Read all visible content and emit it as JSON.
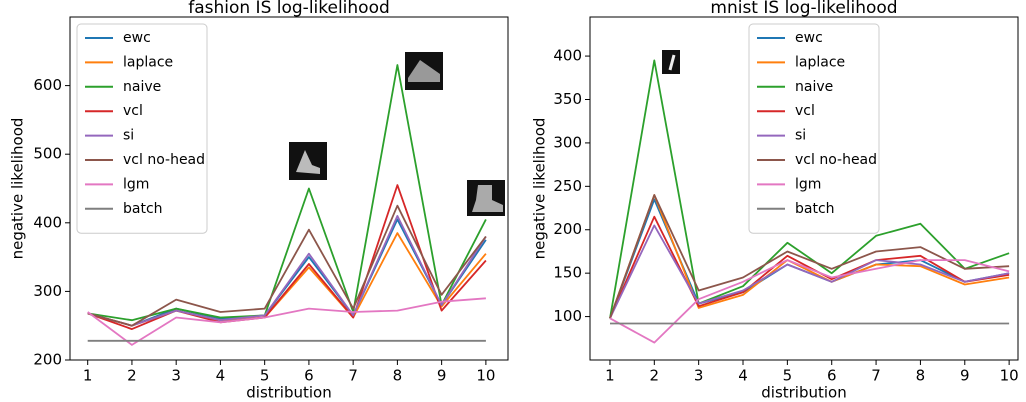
{
  "chart_data": [
    {
      "type": "line",
      "title": "fashion IS log-likelihood",
      "x_label": "distribution",
      "y_label": "negative likelihood",
      "x": [
        1,
        2,
        3,
        4,
        5,
        6,
        7,
        8,
        9,
        10
      ],
      "xlim": [
        0.6,
        10.5
      ],
      "xticks": [
        1,
        2,
        3,
        4,
        5,
        6,
        7,
        8,
        9,
        10
      ],
      "ylim": [
        200,
        700
      ],
      "yticks": [
        200,
        300,
        400,
        500,
        600
      ],
      "legend": "upper left",
      "series": [
        {
          "name": "ewc",
          "color": "#1f77b4",
          "values": [
            268,
            250,
            275,
            260,
            265,
            350,
            265,
            405,
            280,
            375
          ]
        },
        {
          "name": "laplace",
          "color": "#ff7f0e",
          "values": [
            268,
            250,
            272,
            258,
            262,
            335,
            262,
            385,
            278,
            355
          ]
        },
        {
          "name": "naive",
          "color": "#2ca02c",
          "values": [
            268,
            258,
            275,
            262,
            265,
            450,
            270,
            630,
            280,
            405
          ]
        },
        {
          "name": "vcl",
          "color": "#d62728",
          "values": [
            268,
            245,
            272,
            255,
            262,
            340,
            262,
            455,
            272,
            345
          ]
        },
        {
          "name": "si",
          "color": "#9467bd",
          "values": [
            268,
            250,
            272,
            258,
            265,
            355,
            265,
            410,
            280,
            380
          ]
        },
        {
          "name": "vcl no-head",
          "color": "#8c564b",
          "values": [
            268,
            250,
            288,
            270,
            275,
            390,
            275,
            425,
            295,
            380
          ]
        },
        {
          "name": "lgm",
          "color": "#e377c2",
          "values": [
            270,
            222,
            262,
            255,
            262,
            275,
            270,
            272,
            285,
            290
          ]
        },
        {
          "name": "batch",
          "color": "#7f7f7f",
          "values": [
            228,
            228,
            228,
            228,
            228,
            228,
            228,
            228,
            228,
            228
          ]
        }
      ]
    },
    {
      "type": "line",
      "title": "mnist IS log-likelihood",
      "x_label": "distribution",
      "y_label": "negative likelihood",
      "x": [
        1,
        2,
        3,
        4,
        5,
        6,
        7,
        8,
        9,
        10
      ],
      "xlim": [
        0.55,
        10.2
      ],
      "xticks": [
        1,
        2,
        3,
        4,
        5,
        6,
        7,
        8,
        9,
        10
      ],
      "ylim": [
        50,
        445
      ],
      "yticks": [
        100,
        150,
        200,
        250,
        300,
        350,
        400
      ],
      "legend": "upper center",
      "series": [
        {
          "name": "ewc",
          "color": "#1f77b4",
          "values": [
            98,
            235,
            115,
            128,
            160,
            140,
            160,
            165,
            140,
            150
          ]
        },
        {
          "name": "laplace",
          "color": "#ff7f0e",
          "values": [
            98,
            240,
            110,
            125,
            165,
            140,
            160,
            158,
            137,
            145
          ]
        },
        {
          "name": "naive",
          "color": "#2ca02c",
          "values": [
            98,
            395,
            115,
            135,
            185,
            150,
            193,
            207,
            155,
            173
          ]
        },
        {
          "name": "vcl",
          "color": "#d62728",
          "values": [
            98,
            215,
            112,
            128,
            170,
            143,
            165,
            170,
            140,
            148
          ]
        },
        {
          "name": "si",
          "color": "#9467bd",
          "values": [
            98,
            205,
            115,
            130,
            160,
            140,
            165,
            160,
            140,
            150
          ]
        },
        {
          "name": "vcl no-head",
          "color": "#8c564b",
          "values": [
            98,
            240,
            130,
            145,
            175,
            155,
            175,
            180,
            155,
            158
          ]
        },
        {
          "name": "lgm",
          "color": "#e377c2",
          "values": [
            98,
            70,
            120,
            140,
            165,
            145,
            155,
            165,
            165,
            152
          ]
        },
        {
          "name": "batch",
          "color": "#7f7f7f",
          "values": [
            92,
            92,
            92,
            92,
            92,
            92,
            92,
            92,
            92,
            92
          ]
        }
      ]
    }
  ]
}
